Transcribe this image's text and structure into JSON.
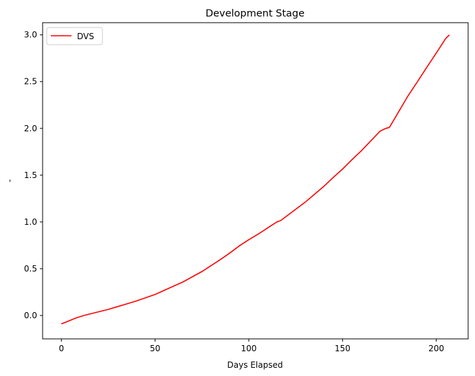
{
  "chart_data": {
    "type": "line",
    "title": "Development Stage",
    "xlabel": "Days Elapsed",
    "ylabel": "-",
    "xlim": [
      -10,
      217
    ],
    "ylim": [
      -0.25,
      3.13
    ],
    "xticks": [
      0,
      50,
      100,
      150,
      200
    ],
    "yticks": [
      0.0,
      0.5,
      1.0,
      1.5,
      2.0,
      2.5,
      3.0
    ],
    "xtick_labels": [
      "0",
      "50",
      "100",
      "150",
      "200"
    ],
    "ytick_labels": [
      "0.0",
      "0.5",
      "1.0",
      "1.5",
      "2.0",
      "2.5",
      "3.0"
    ],
    "legend_position": "top-left",
    "series": [
      {
        "name": "DVS",
        "color": "#ff0000",
        "x": [
          0,
          5,
          8,
          12,
          16,
          20,
          25,
          30,
          35,
          40,
          45,
          50,
          55,
          60,
          65,
          70,
          75,
          80,
          85,
          90,
          95,
          100,
          105,
          110,
          115,
          117,
          120,
          125,
          130,
          135,
          140,
          145,
          150,
          155,
          160,
          165,
          170,
          173,
          175,
          180,
          185,
          190,
          195,
          200,
          205,
          207
        ],
        "y": [
          -0.09,
          -0.05,
          -0.025,
          0.0,
          0.02,
          0.04,
          0.065,
          0.095,
          0.125,
          0.155,
          0.19,
          0.225,
          0.27,
          0.315,
          0.36,
          0.415,
          0.47,
          0.535,
          0.6,
          0.67,
          0.745,
          0.81,
          0.87,
          0.935,
          1.0,
          1.015,
          1.06,
          1.135,
          1.21,
          1.295,
          1.38,
          1.475,
          1.565,
          1.665,
          1.76,
          1.865,
          1.97,
          2.0,
          2.01,
          2.18,
          2.35,
          2.5,
          2.655,
          2.805,
          2.96,
          3.0
        ]
      }
    ]
  }
}
